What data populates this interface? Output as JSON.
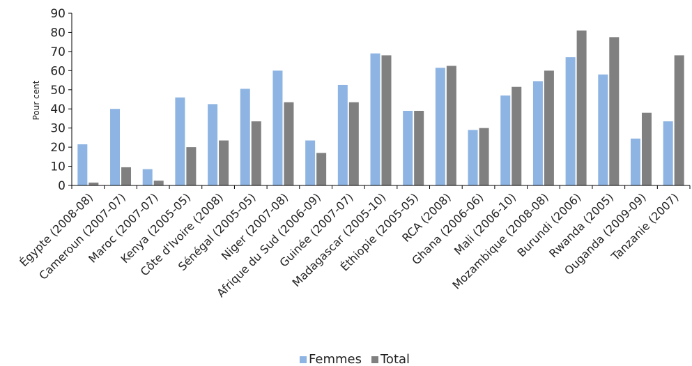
{
  "chart_data": {
    "type": "bar",
    "title": "",
    "xlabel": "",
    "ylabel": "Pour cent",
    "ylim": [
      0,
      90
    ],
    "yticks": [
      0,
      10,
      20,
      30,
      40,
      50,
      60,
      70,
      80,
      90
    ],
    "grid": false,
    "legend_position": "bottom-center",
    "categories": [
      "Égypte (2008-08)",
      "Cameroun (2007-07)",
      "Maroc (2007-07)",
      "Kenya (2005-05)",
      "Côte d'Ivoire (2008)",
      "Sénégal (2005-05)",
      "Niger (2007-08)",
      "Afrique du Sud (2006-09)",
      "Guinée (2007-07)",
      "Madagascar (2005-10)",
      "Éthiopie (2005-05)",
      "RCA (2008)",
      "Ghana (2006-06)",
      "Mali (2006-10)",
      "Mozambique (2008-08)",
      "Burundi (2006)",
      "Rwanda (2005)",
      "Ouganda (2009-09)",
      "Tanzanie (2007)"
    ],
    "series": [
      {
        "name": "Femmes",
        "color": "#8db4e2",
        "values": [
          21.5,
          40,
          8.5,
          46,
          42.5,
          50.5,
          60,
          23.5,
          52.5,
          69,
          39,
          61.5,
          29,
          47,
          54.5,
          67,
          58,
          24.5,
          33.5
        ]
      },
      {
        "name": "Total",
        "color": "#808080",
        "values": [
          1.5,
          9.5,
          2.5,
          20,
          23.5,
          33.5,
          43.5,
          17,
          43.5,
          68,
          39,
          62.5,
          30,
          51.5,
          60,
          81,
          77.5,
          38,
          68
        ]
      }
    ]
  }
}
